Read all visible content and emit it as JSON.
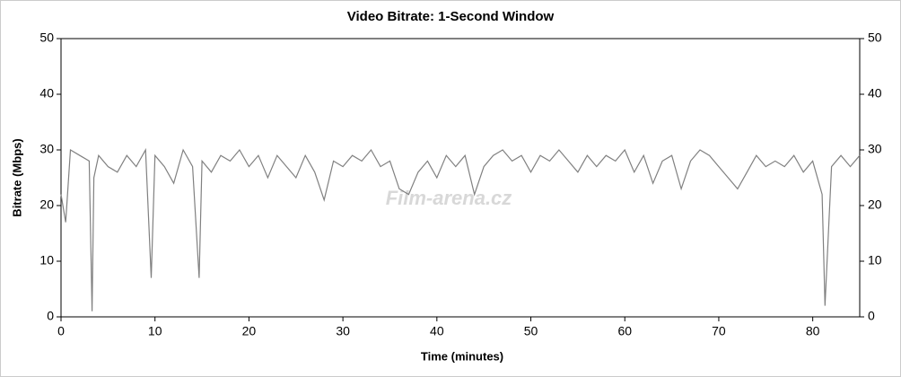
{
  "chart_data": {
    "type": "line",
    "title": "Video Bitrate: 1-Second Window",
    "x_label": "Time (minutes)",
    "y_label": "Bitrate (Mbps)",
    "watermark": "Film-arena.cz",
    "color": "#808080",
    "x": [
      0,
      0.5,
      1,
      2,
      3,
      3.3,
      3.5,
      4,
      5,
      6,
      7,
      8,
      9,
      9.6,
      10,
      11,
      12,
      13,
      14,
      14.7,
      15,
      16,
      17,
      18,
      19,
      20,
      21,
      22,
      23,
      24,
      25,
      26,
      27,
      28,
      29,
      30,
      31,
      32,
      33,
      34,
      35,
      36,
      37,
      38,
      39,
      40,
      41,
      42,
      43,
      44,
      45,
      46,
      47,
      48,
      49,
      50,
      51,
      52,
      53,
      54,
      55,
      56,
      57,
      58,
      59,
      60,
      61,
      62,
      63,
      64,
      65,
      66,
      67,
      68,
      69,
      70,
      71,
      72,
      73,
      74,
      75,
      76,
      77,
      78,
      79,
      80,
      81,
      81.3,
      82,
      83,
      84,
      85
    ],
    "values": [
      22,
      17,
      30,
      29,
      28,
      1,
      25,
      29,
      27,
      26,
      29,
      27,
      30,
      7,
      29,
      27,
      24,
      30,
      27,
      7,
      28,
      26,
      29,
      28,
      30,
      27,
      29,
      25,
      29,
      27,
      25,
      29,
      26,
      21,
      28,
      27,
      29,
      28,
      30,
      27,
      28,
      23,
      22,
      26,
      28,
      25,
      29,
      27,
      29,
      22,
      27,
      29,
      30,
      28,
      29,
      26,
      29,
      28,
      30,
      28,
      26,
      29,
      27,
      29,
      28,
      30,
      26,
      29,
      24,
      28,
      29,
      23,
      28,
      30,
      29,
      27,
      25,
      23,
      26,
      29,
      27,
      28,
      27,
      29,
      26,
      28,
      22,
      2,
      27,
      29,
      27,
      29
    ],
    "xlim": [
      0,
      85
    ],
    "ylim": [
      0,
      50
    ],
    "xticks": [
      0,
      10,
      20,
      30,
      40,
      50,
      60,
      70,
      80
    ],
    "yticks": [
      0,
      10,
      20,
      30,
      40,
      50
    ]
  }
}
